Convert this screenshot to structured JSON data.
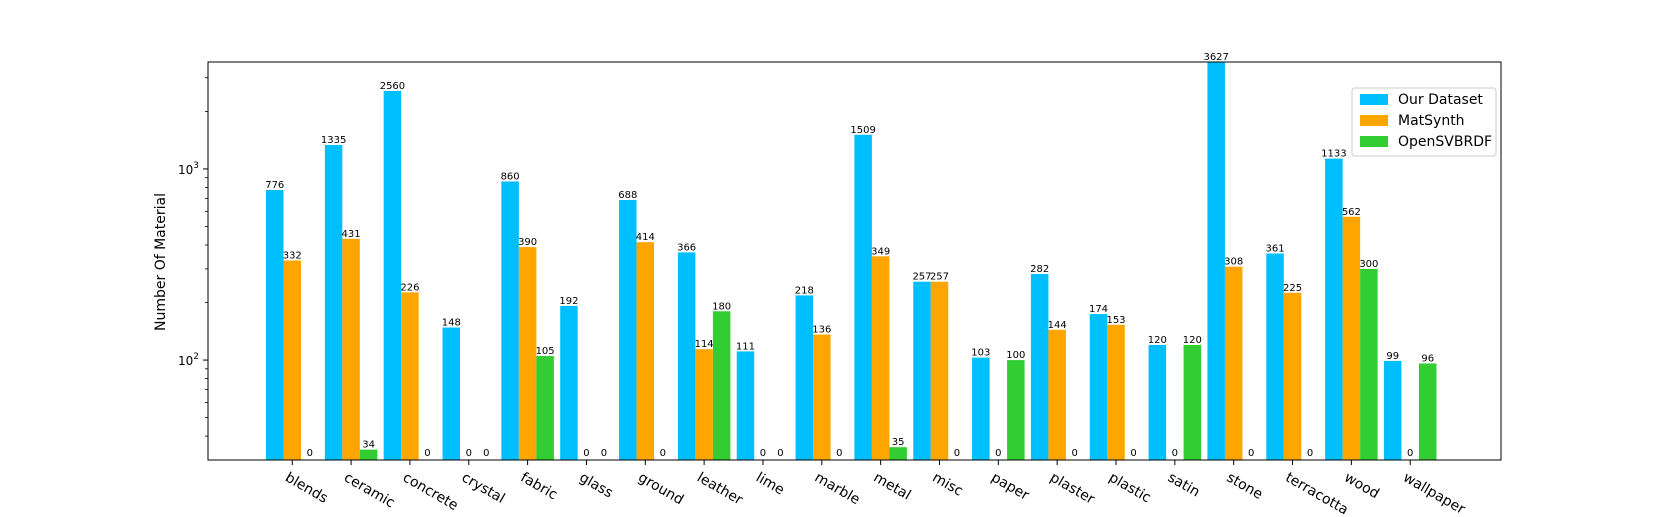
{
  "chart_data": {
    "type": "bar",
    "ylabel": "Number Of Material",
    "xlabel": "",
    "yscale": "log",
    "ylim": [
      30,
      3627
    ],
    "yticks": [
      {
        "base": "10",
        "exp": "3",
        "value": 1000
      },
      {
        "base": "10",
        "exp": "2",
        "value": 100
      }
    ],
    "legend_position": "top-right",
    "grid": false,
    "categories": [
      "blends",
      "ceramic",
      "concrete",
      "crystal",
      "fabric",
      "glass",
      "ground",
      "leather",
      "lime",
      "marble",
      "metal",
      "misc",
      "paper",
      "plaster",
      "plastic",
      "satin",
      "stone",
      "terracotta",
      "wood",
      "wallpaper"
    ],
    "series": [
      {
        "name": "Our Dataset",
        "color": "#00bfff",
        "values": [
          776,
          1335,
          2560,
          148,
          860,
          192,
          688,
          366,
          111,
          218,
          1509,
          257,
          103,
          282,
          174,
          120,
          3627,
          361,
          1133,
          99
        ]
      },
      {
        "name": "MatSynth",
        "color": "#ffa500",
        "values": [
          332,
          431,
          226,
          0,
          390,
          0,
          414,
          114,
          0,
          136,
          349,
          257,
          0,
          144,
          153,
          0,
          308,
          225,
          562,
          0
        ]
      },
      {
        "name": "OpenSVBRDF",
        "color": "#32cd32",
        "values": [
          0,
          34,
          0,
          0,
          105,
          0,
          0,
          180,
          0,
          0,
          35,
          0,
          100,
          0,
          0,
          120,
          0,
          0,
          300,
          96
        ]
      }
    ]
  }
}
